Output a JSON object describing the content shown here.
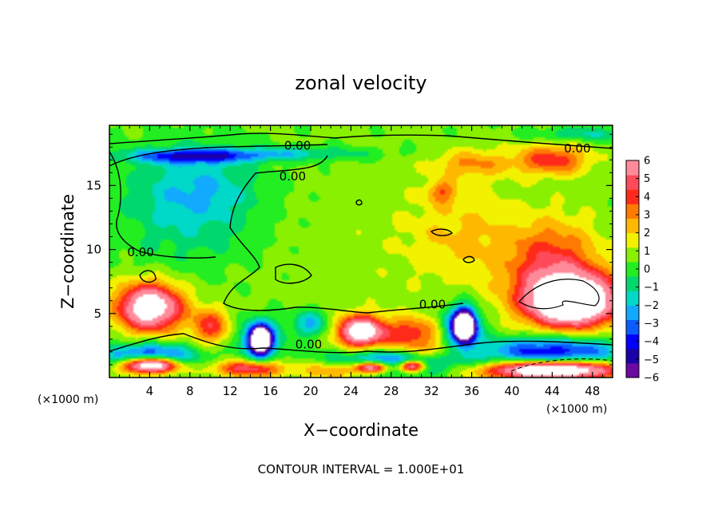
{
  "chart_data": {
    "type": "heatmap",
    "title": "zonal velocity",
    "xlabel": "X−coordinate",
    "ylabel": "Z−coordinate",
    "x_unit_left": "(×1000 m)",
    "x_unit_right": "(×1000 m)",
    "footer": "CONTOUR INTERVAL = 1.000E+01",
    "xlim": [
      0,
      50
    ],
    "ylim": [
      0,
      19.7
    ],
    "x_ticks": [
      {
        "value": 4,
        "label": "4"
      },
      {
        "value": 8,
        "label": "8"
      },
      {
        "value": 12,
        "label": "12"
      },
      {
        "value": 16,
        "label": "16"
      },
      {
        "value": 20,
        "label": "20"
      },
      {
        "value": 24,
        "label": "24"
      },
      {
        "value": 28,
        "label": "28"
      },
      {
        "value": 32,
        "label": "32"
      },
      {
        "value": 36,
        "label": "36"
      },
      {
        "value": 40,
        "label": "40"
      },
      {
        "value": 44,
        "label": "44"
      },
      {
        "value": 48,
        "label": "48"
      }
    ],
    "y_ticks": [
      {
        "value": 5,
        "label": "5"
      },
      {
        "value": 10,
        "label": "10"
      },
      {
        "value": 15,
        "label": "15"
      }
    ],
    "colorbar": {
      "range": [
        -6,
        6
      ],
      "labels": [
        {
          "value": 6,
          "label": "6"
        },
        {
          "value": 5,
          "label": "5"
        },
        {
          "value": 4,
          "label": "4"
        },
        {
          "value": 3,
          "label": "3"
        },
        {
          "value": 2,
          "label": "2"
        },
        {
          "value": 1,
          "label": "1"
        },
        {
          "value": 0,
          "label": "0"
        },
        {
          "value": -1,
          "label": "−1"
        },
        {
          "value": -2,
          "label": "−2"
        },
        {
          "value": -3,
          "label": "−3"
        },
        {
          "value": -4,
          "label": "−4"
        },
        {
          "value": -5,
          "label": "−5"
        },
        {
          "value": -6,
          "label": "−6"
        }
      ],
      "colors": [
        "#6a0aa0",
        "#1a00a8",
        "#0000ff",
        "#0a5eff",
        "#11aaff",
        "#00d8c8",
        "#00d86e",
        "#22ee22",
        "#88f000",
        "#f2f200",
        "#ffb800",
        "#ff7a00",
        "#ff2a1a",
        "#ff4a5a",
        "#ff8a9a"
      ]
    },
    "contour_labels": [
      {
        "x": 18.7,
        "y": 18.1,
        "label": "0.00"
      },
      {
        "x": 46.5,
        "y": 17.9,
        "label": "0.00"
      },
      {
        "x": 18.2,
        "y": 15.7,
        "label": "0.00"
      },
      {
        "x": 3.1,
        "y": 9.8,
        "label": "0.00"
      },
      {
        "x": 32.1,
        "y": 5.7,
        "label": "0.00"
      },
      {
        "x": 19.8,
        "y": 2.6,
        "label": "0.00"
      }
    ],
    "field_blobs": [
      {
        "x": 25,
        "y": 10,
        "rx": 35,
        "ry": 12,
        "v": 0.5
      },
      {
        "x": 8,
        "y": 13,
        "rx": 8,
        "ry": 5,
        "v": -1.8
      },
      {
        "x": 9,
        "y": 15,
        "rx": 6,
        "ry": 3,
        "v": -1.4
      },
      {
        "x": 8,
        "y": 17.3,
        "rx": 7,
        "ry": 0.6,
        "v": -4.0
      },
      {
        "x": 18,
        "y": 17.5,
        "rx": 9,
        "ry": 0.6,
        "v": -2.0
      },
      {
        "x": 44,
        "y": 17,
        "rx": 4,
        "ry": 1.3,
        "v": 3.6
      },
      {
        "x": 36,
        "y": 16.7,
        "rx": 4,
        "ry": 1.2,
        "v": 2.2
      },
      {
        "x": 33,
        "y": 14.5,
        "rx": 1.5,
        "ry": 1,
        "v": 2.5
      },
      {
        "x": 47,
        "y": 19,
        "rx": 5,
        "ry": 0.6,
        "v": -1.8
      },
      {
        "x": 35,
        "y": 11,
        "rx": 6,
        "ry": 4,
        "v": 1.4
      },
      {
        "x": 44,
        "y": 9,
        "rx": 5,
        "ry": 3.5,
        "v": 3.5
      },
      {
        "x": 46,
        "y": 6,
        "rx": 5,
        "ry": 2.2,
        "v": 10
      },
      {
        "x": 4,
        "y": 5.5,
        "rx": 3.5,
        "ry": 2,
        "v": 8
      },
      {
        "x": 15,
        "y": 3,
        "rx": 2,
        "ry": 1.6,
        "v": -6
      },
      {
        "x": 15,
        "y": 2.9,
        "rx": 0.9,
        "ry": 0.9,
        "v": -12
      },
      {
        "x": 10,
        "y": 4,
        "rx": 2,
        "ry": 1.5,
        "v": 3.5
      },
      {
        "x": 20,
        "y": 4.2,
        "rx": 2,
        "ry": 1.2,
        "v": -2.8
      },
      {
        "x": 25,
        "y": 3.6,
        "rx": 2.5,
        "ry": 1.3,
        "v": 8
      },
      {
        "x": 30,
        "y": 3.5,
        "rx": 3,
        "ry": 1.3,
        "v": 3.5
      },
      {
        "x": 35,
        "y": 4,
        "rx": 2,
        "ry": 1.8,
        "v": -5
      },
      {
        "x": 35.3,
        "y": 4,
        "rx": 1,
        "ry": 1.2,
        "v": -12
      },
      {
        "x": 4,
        "y": 1.7,
        "rx": 5,
        "ry": 1,
        "v": -5
      },
      {
        "x": 4,
        "y": 1,
        "rx": 3,
        "ry": 0.7,
        "v": 10
      },
      {
        "x": 14,
        "y": 0.7,
        "rx": 4,
        "ry": 0.7,
        "v": 4.5
      },
      {
        "x": 22,
        "y": 0.6,
        "rx": 3,
        "ry": 0.8,
        "v": 3
      },
      {
        "x": 28,
        "y": 1.2,
        "rx": 7,
        "ry": 1,
        "v": -4.5
      },
      {
        "x": 26,
        "y": 0.8,
        "rx": 2,
        "ry": 0.5,
        "v": 8
      },
      {
        "x": 30,
        "y": 0.9,
        "rx": 1.5,
        "ry": 0.5,
        "v": 8
      },
      {
        "x": 44,
        "y": 2,
        "rx": 8,
        "ry": 1.3,
        "v": -5
      },
      {
        "x": 44,
        "y": 0.6,
        "rx": 7,
        "ry": 0.8,
        "v": 10
      },
      {
        "x": 32,
        "y": 2,
        "rx": 4,
        "ry": 1,
        "v": 2
      }
    ]
  }
}
